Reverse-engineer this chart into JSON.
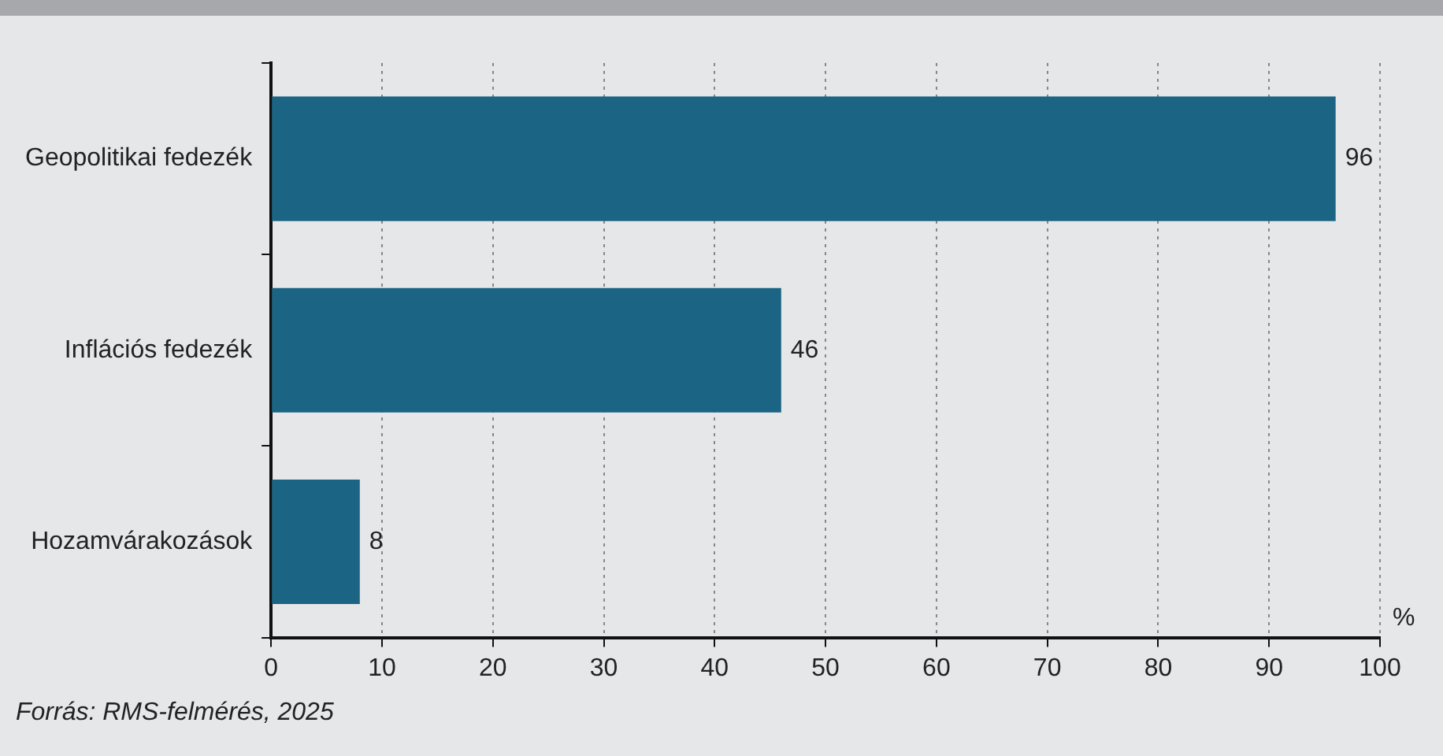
{
  "chart_data": {
    "type": "bar",
    "orientation": "horizontal",
    "categories": [
      "Geopolitikai fedezék",
      "Inflációs fedezék",
      "Hozamvárakozások"
    ],
    "values": [
      96,
      46,
      8
    ],
    "color": "#1b6483",
    "xlim": [
      0,
      100
    ],
    "xticks": [
      0,
      10,
      20,
      30,
      40,
      50,
      60,
      70,
      80,
      90,
      100
    ],
    "xlabel": "%",
    "grid": "x",
    "data_labels": true,
    "annotations": [
      "Forrás: RMS-felmérés, 2025"
    ]
  }
}
